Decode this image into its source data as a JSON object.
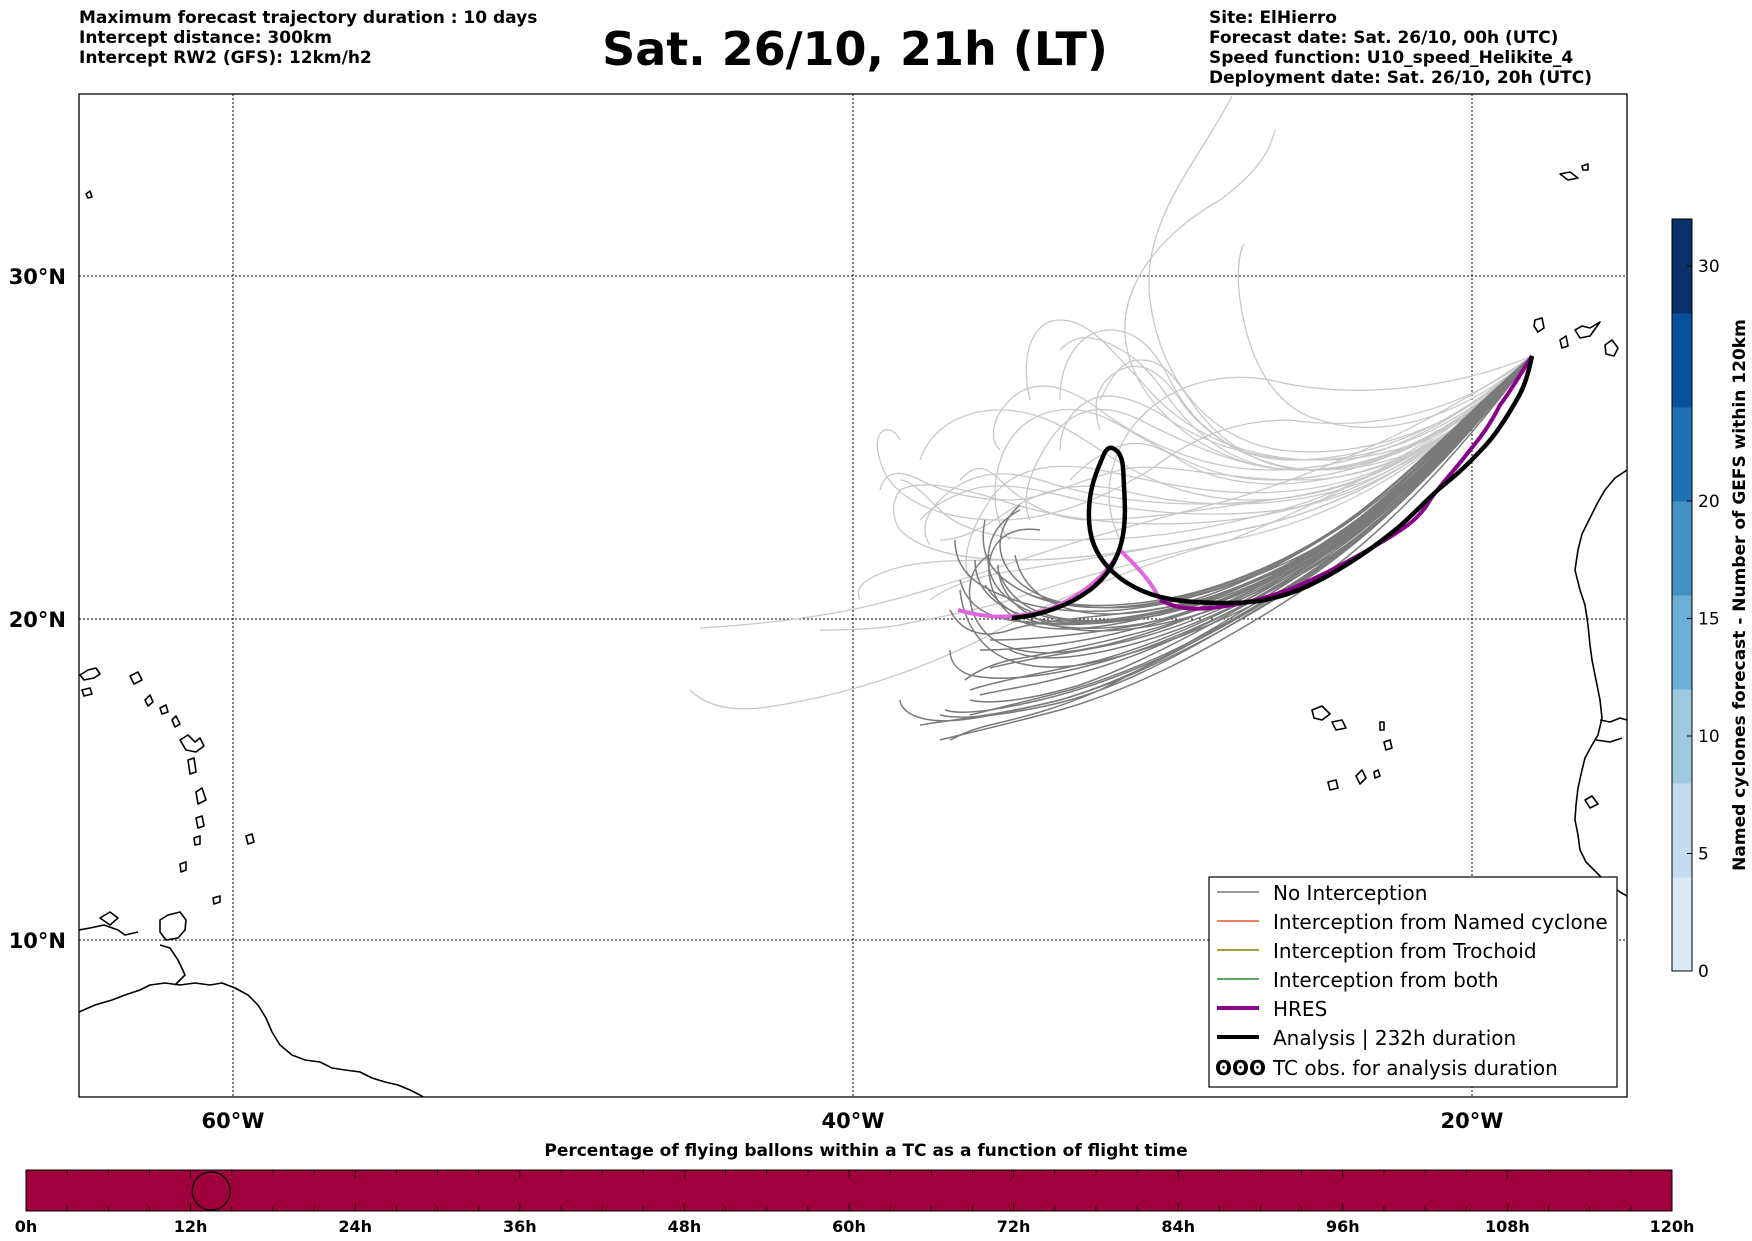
{
  "header": {
    "left_lines": [
      "Maximum forecast trajectory duration : 10 days",
      "Intercept distance: 300km",
      "Intercept RW2 (GFS):  12km/h2"
    ],
    "title": "Sat. 26/10, 21h (LT)",
    "right_lines": [
      "Site: ElHierro",
      "Forecast date: Sat. 26/10, 00h (UTC)",
      "Speed function: U10_speed_Helikite_4",
      "Deployment date: Sat. 26/10, 20h (UTC)"
    ]
  },
  "map": {
    "lon_range": [
      -65,
      15
    ],
    "lat_range": [
      5.3,
      34.6
    ],
    "lon_labels": [
      "60°W",
      "40°W",
      "20°W"
    ],
    "lat_labels": [
      "30°N",
      "20°N",
      "10°N"
    ],
    "colors": {
      "no_interception": "#7a7a7a",
      "faint_member": "#c8c8c8",
      "named_cyclone": "#e8542a",
      "trochoid": "#808000",
      "both": "#2a8a2a",
      "hres": "#8b008b",
      "hres_early": "#e066e0",
      "analysis": "#000000"
    }
  },
  "legend": {
    "items": [
      "No Interception",
      "Interception from Named cyclone",
      "Interception from Trochoid",
      "Interception from both",
      "HRES",
      "Analysis | 232h duration",
      "TC obs. for analysis duration"
    ],
    "tc_symbol": "ʘʘʘ"
  },
  "colorbar": {
    "label": "Named cyclones forecast - Number of GEFS within 120km",
    "ticks": [
      "0",
      "5",
      "10",
      "15",
      "20",
      "30"
    ],
    "min": 0,
    "max": 32,
    "colors": [
      "#dbe9f6",
      "#c6dbef",
      "#9ecae1",
      "#6baed6",
      "#4292c6",
      "#2171b5",
      "#08519c",
      "#08306b"
    ]
  },
  "timeline": {
    "title": "Percentage of flying ballons within a TC as a function of flight time",
    "ticks": [
      "0h",
      "12h",
      "24h",
      "36h",
      "48h",
      "60h",
      "72h",
      "84h",
      "96h",
      "108h",
      "120h"
    ],
    "bar_color": "#a0003c",
    "marker_hour": 13.5
  }
}
